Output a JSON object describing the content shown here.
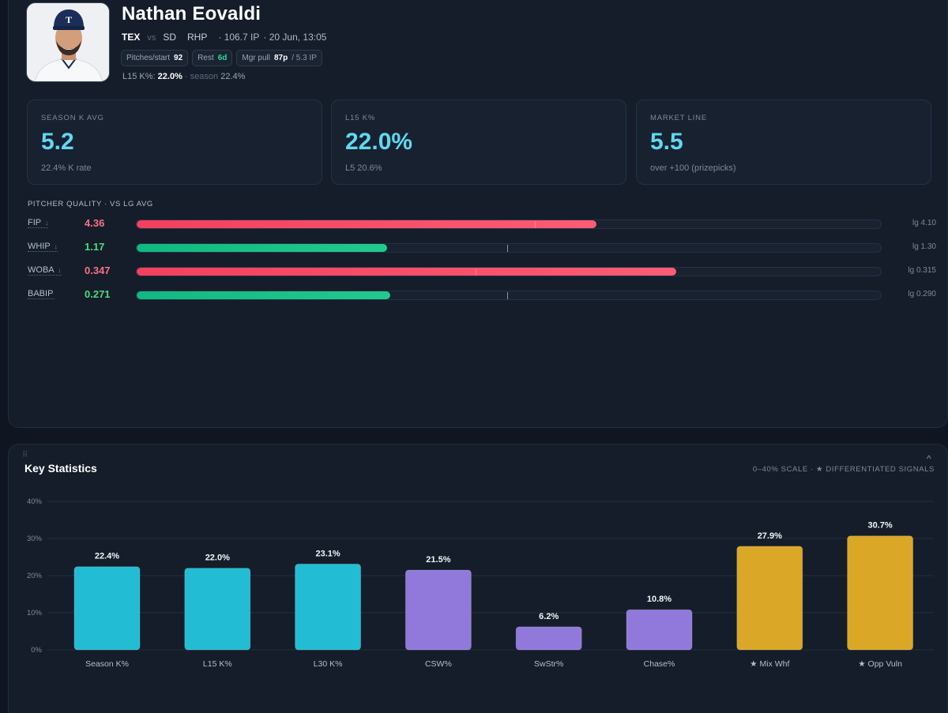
{
  "player": {
    "name": "Nathan Eovaldi",
    "team": "TEX",
    "vs": "vs",
    "opponent": "SD",
    "hand": "RHP",
    "ip": "· 106.7 IP",
    "game_time": "· 20 Jun, 13:05"
  },
  "pills": {
    "pitches_label": "Pitches/start",
    "pitches_value": "92",
    "rest_label": "Rest",
    "rest_value": "6d",
    "mgr_label": "Mgr pull",
    "mgr_value": "87p",
    "mgr_sub": "/ 5.3 IP"
  },
  "k_line": {
    "l15_label": "L15 K%:",
    "l15_value": "22.0%",
    "sep": "·",
    "season_label": "season",
    "season_value": "22.4%"
  },
  "tiles": [
    {
      "label": "SEASON K AVG",
      "value": "5.2",
      "sub": "22.4% K rate"
    },
    {
      "label": "L15 K%",
      "value": "22.0%",
      "sub": "L5 20.6%"
    },
    {
      "label": "MARKET LINE",
      "value": "5.5",
      "sub": "over +100 (prizepicks)"
    }
  ],
  "pitcher_quality": {
    "title": "PITCHER QUALITY · VS LG AVG",
    "rows": [
      {
        "name": "FIP",
        "arrow": "↓",
        "value": "4.36",
        "status": "bad",
        "fill": 0.618,
        "lg_mark": 0.535,
        "lg": "lg 4.10"
      },
      {
        "name": "WHIP",
        "arrow": "↓",
        "value": "1.17",
        "status": "good",
        "fill": 0.336,
        "lg_mark": 0.498,
        "lg": "lg 1.30"
      },
      {
        "name": "WOBA",
        "arrow": "↓",
        "value": "0.347",
        "status": "bad",
        "fill": 0.725,
        "lg_mark": 0.455,
        "lg": "lg 0.315"
      },
      {
        "name": "BABIP",
        "arrow": "",
        "value": "0.271",
        "status": "good",
        "fill": 0.341,
        "lg_mark": 0.498,
        "lg": "lg 0.290"
      }
    ]
  },
  "key_statistics": {
    "title": "Key Statistics",
    "scale_note": "0–40% SCALE · ★ DIFFERENTIATED SIGNALS",
    "caret": "^",
    "grip": "⠿"
  },
  "colors": {
    "k_rate": "#22bcd5",
    "pitch_quality": "#9179dc",
    "signal": "#dba726"
  },
  "chart_data": {
    "type": "bar",
    "categories": [
      "Season K%",
      "L15 K%",
      "L30 K%",
      "CSW%",
      "SwStr%",
      "Chase%",
      "★ Mix Whf",
      "★ Opp Vuln"
    ],
    "values": [
      22.4,
      22.0,
      23.1,
      21.5,
      6.2,
      10.8,
      27.9,
      30.7
    ],
    "value_labels": [
      "22.4%",
      "22.0%",
      "23.1%",
      "21.5%",
      "6.2%",
      "10.8%",
      "27.9%",
      "30.7%"
    ],
    "bar_colors": [
      "#22bcd5",
      "#22bcd5",
      "#22bcd5",
      "#9179dc",
      "#9179dc",
      "#9179dc",
      "#dba726",
      "#dba726"
    ],
    "yticks": [
      "0%",
      "10%",
      "20%",
      "30%",
      "40%"
    ],
    "ylim": [
      0,
      40
    ],
    "grid": true
  }
}
